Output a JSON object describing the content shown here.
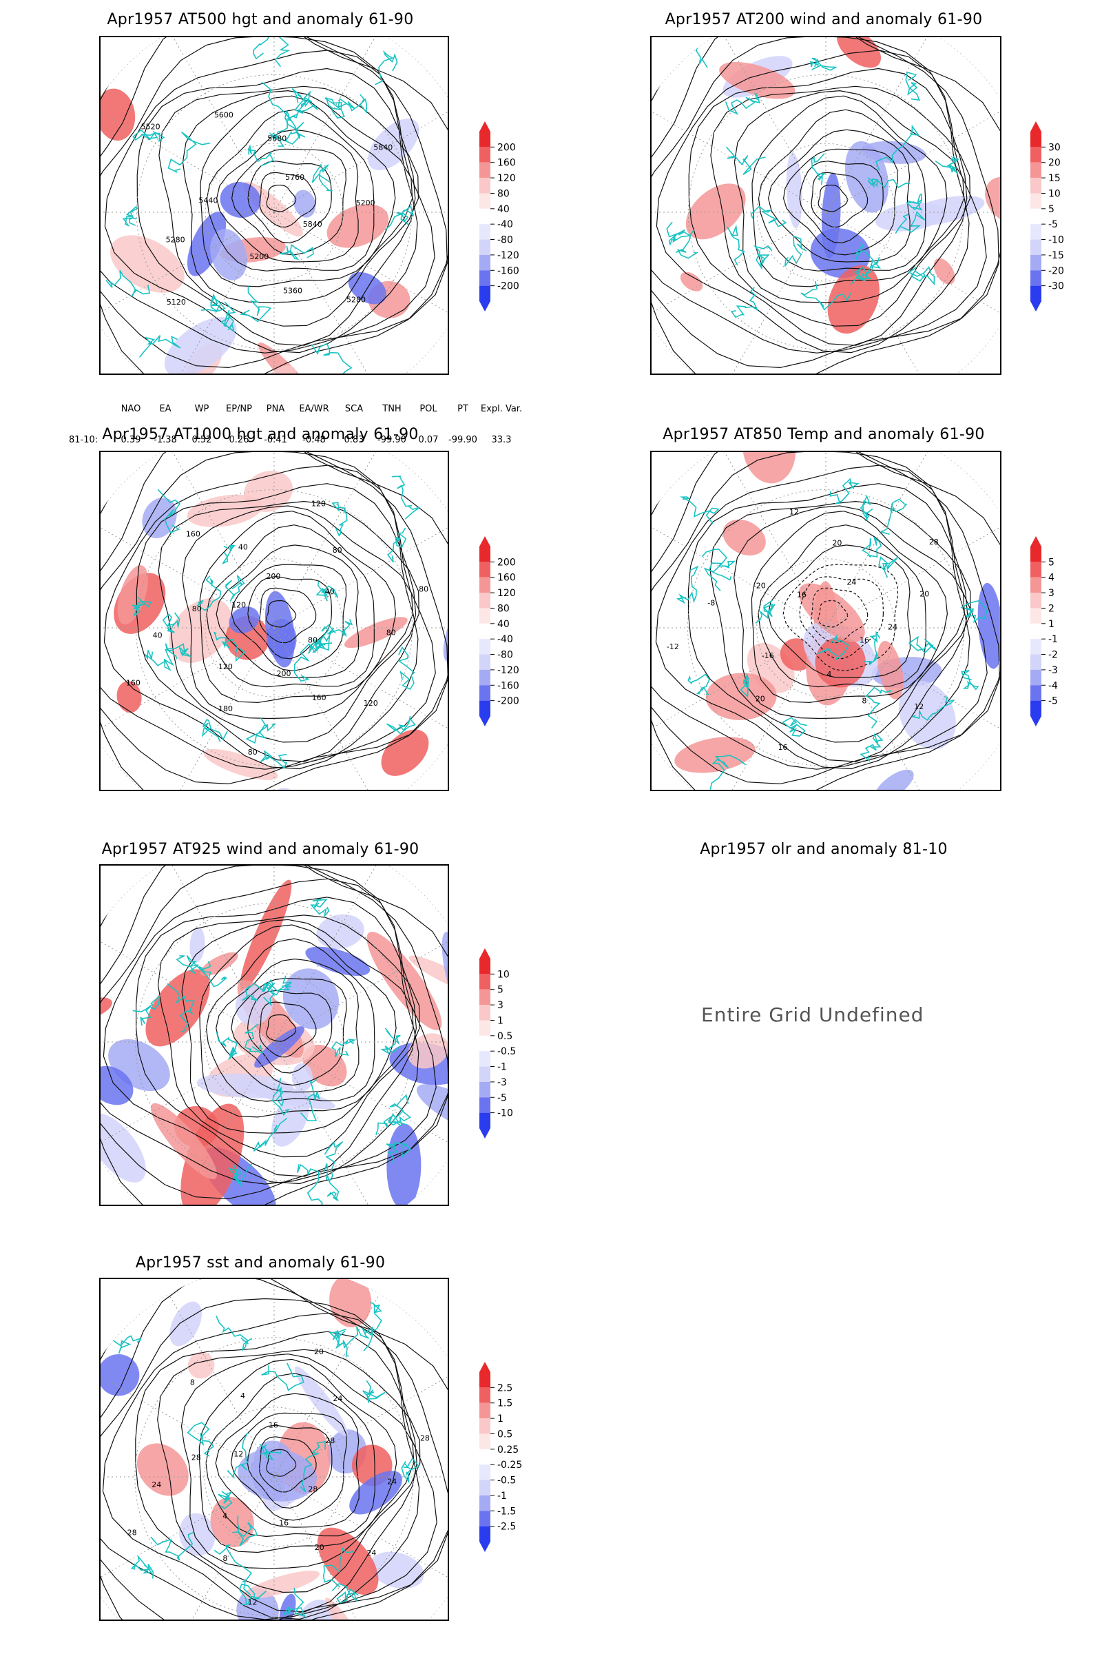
{
  "panels": [
    {
      "id": "p500",
      "title": "Apr1957 AT500 hgt and anomaly 61-90",
      "contour_labels": [
        "5840",
        "5280",
        "5360",
        "5200",
        "5120",
        "5280",
        "5440",
        "5520",
        "5600",
        "5680",
        "5760",
        "5840",
        "5200"
      ],
      "colorbar": [
        "200",
        "160",
        "120",
        "80",
        "40",
        "-40",
        "-80",
        "-120",
        "-160",
        "-200"
      ]
    },
    {
      "id": "p200",
      "title": "Apr1957 AT200 wind and anomaly 61-90",
      "contour_labels": [],
      "colorbar": [
        "30",
        "20",
        "15",
        "10",
        "5",
        "-5",
        "-10",
        "-15",
        "-20",
        "-30"
      ]
    },
    {
      "id": "p1000",
      "title": "Apr1957 AT1000 hgt and anomaly 61-90",
      "contour_labels": [
        "80",
        "120",
        "160",
        "200",
        "80",
        "180",
        "120",
        "160",
        "40",
        "80",
        "120",
        "160",
        "40",
        "200",
        "120",
        "80",
        "40",
        "80",
        "80"
      ],
      "colorbar": [
        "200",
        "160",
        "120",
        "80",
        "40",
        "-40",
        "-80",
        "-120",
        "-160",
        "-200"
      ]
    },
    {
      "id": "p850",
      "title": "Apr1957 AT850 Temp and anomaly 61-90",
      "contour_labels": [
        "16",
        "12",
        "8",
        "4",
        "16",
        "20",
        "-16",
        "-12",
        "-8",
        "-20",
        "16",
        "12",
        "20",
        "24",
        "28",
        "20",
        "24"
      ],
      "colorbar": [
        "5",
        "4",
        "3",
        "2",
        "1",
        "-1",
        "-2",
        "-3",
        "-4",
        "-5"
      ]
    },
    {
      "id": "p925",
      "title": "Apr1957 AT925 wind and anomaly 61-90",
      "contour_labels": [],
      "colorbar": [
        "10",
        "5",
        "3",
        "1",
        "0.5",
        "-0.5",
        "-1",
        "-3",
        "-5",
        "-10"
      ]
    },
    {
      "id": "polr",
      "title": "Apr1957 olr and anomaly 81-10",
      "undefined_text": "Entire Grid Undefined"
    },
    {
      "id": "psst",
      "title": "Apr1957 sst and anomaly 61-90",
      "contour_labels": [
        "28",
        "24",
        "20",
        "16",
        "12",
        "8",
        "4",
        "28",
        "24",
        "28",
        "12",
        "8",
        "4",
        "16",
        "20",
        "24",
        "28",
        "28",
        "24"
      ],
      "colorbar": [
        "2.5",
        "1.5",
        "1",
        "0.5",
        "0.25",
        "-0.25",
        "-0.5",
        "-1",
        "-1.5",
        "-2.5"
      ]
    }
  ],
  "indices": {
    "headers": [
      "NAO",
      "EA",
      "WP",
      "EP/NP",
      "PNA",
      "EA/WR",
      "SCA",
      "TNH",
      "POL",
      "PT",
      "Expl. Var."
    ],
    "row_label": "81-10:",
    "values": [
      "0.39",
      "-1.38",
      "0.52",
      "0.26",
      "-0.41",
      "-0.48",
      "0.83",
      "-99.90",
      "0.07",
      "-99.90",
      "33.3"
    ]
  },
  "colors": {
    "positive": "#e8282a",
    "negative": "#2a3cf0",
    "coast": "#19c3c3"
  }
}
